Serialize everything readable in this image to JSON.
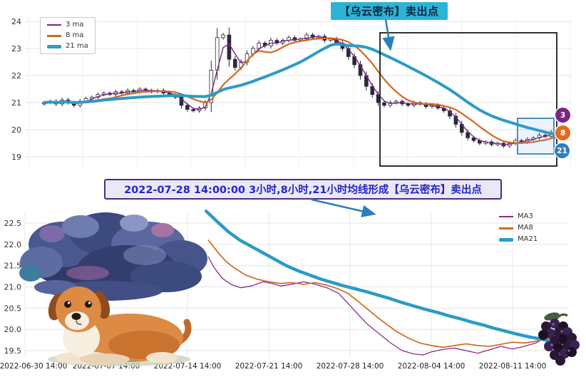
{
  "annotations": {
    "callout": {
      "text": "【乌云密布】卖出点",
      "bg": "#2db3d6",
      "text_color": "#0a2740"
    },
    "banner": {
      "text": "2022-07-28 14:00:00 3小时,8小时,21小时均线形成【乌云密布】卖出点",
      "bg": "#eae8f5",
      "border_color": "#4b2e83",
      "text_color": "#2326c8"
    },
    "badges": [
      {
        "label": "3",
        "color": "#7d2483"
      },
      {
        "label": "8",
        "color": "#e06d1f"
      },
      {
        "label": "21",
        "color": "#2f7fbf"
      }
    ],
    "region_box_color": "#1c1c1c",
    "highlight_box_color": "#4a90c2",
    "arrow_color": "#2a7fc0"
  },
  "chart_data": [
    {
      "type": "candlestick",
      "title": "",
      "xlabel": "",
      "ylabel": "",
      "ylim": [
        18.8,
        24.3
      ],
      "y_ticks": [
        24,
        23,
        22,
        21,
        20,
        19
      ],
      "grid": true,
      "legend_position": "upper-left",
      "ma_labels": [
        "3 ma",
        "8 ma",
        "21 ma"
      ],
      "ma_windows": [
        3,
        8,
        21
      ],
      "ma_colors": [
        "#7d2483",
        "#d2691e",
        "#2b9bc7"
      ],
      "closes": [
        21.0,
        21.05,
        20.95,
        21.1,
        21.0,
        20.9,
        21.05,
        21.15,
        21.2,
        21.3,
        21.35,
        21.3,
        21.4,
        21.35,
        21.45,
        21.4,
        21.5,
        21.45,
        21.4,
        21.45,
        21.35,
        21.3,
        21.2,
        20.9,
        20.75,
        20.7,
        20.8,
        21.0,
        22.2,
        23.4,
        23.5,
        22.6,
        22.3,
        22.5,
        22.8,
        23.0,
        23.2,
        23.1,
        23.3,
        23.2,
        23.3,
        23.4,
        23.3,
        23.35,
        23.5,
        23.4,
        23.45,
        23.3,
        23.35,
        23.2,
        23.0,
        22.7,
        22.4,
        22.0,
        21.6,
        21.3,
        21.0,
        20.9,
        21.0,
        21.05,
        20.95,
        20.9,
        21.0,
        20.95,
        20.85,
        20.9,
        20.8,
        20.7,
        20.5,
        20.2,
        19.9,
        19.7,
        19.6,
        19.5,
        19.55,
        19.45,
        19.5,
        19.4,
        19.5,
        19.6,
        19.55,
        19.65,
        19.7,
        19.8,
        19.75,
        19.9,
        19.85,
        19.95
      ]
    },
    {
      "type": "line",
      "title": "",
      "xlabel": "",
      "ylabel": "",
      "ylim": [
        19.3,
        22.9
      ],
      "grid": true,
      "legend_position": "upper-right",
      "y_ticks": [
        "22.5",
        "22.0",
        "21.5",
        "21.0",
        "20.5",
        "20.0",
        "19.5"
      ],
      "x_tick_days": [
        0,
        7,
        14,
        21,
        28,
        35,
        42
      ],
      "x_tick_labels": [
        "2022-06-30 14:00",
        "2022-07-07 14:00",
        "2022-07-14 14:00",
        "2022-07-21 14:00",
        "2022-07-28 14:00",
        "2022-08-04 14:00",
        "2022-08-11 14:00"
      ],
      "series": [
        {
          "name": "MA3",
          "color": "#8a2a8a",
          "width": 1.3,
          "points": [
            [
              15.8,
              21.7
            ],
            [
              16.3,
              21.45
            ],
            [
              17,
              21.2
            ],
            [
              17.8,
              21.05
            ],
            [
              18.6,
              20.98
            ],
            [
              19.5,
              21.02
            ],
            [
              20.5,
              21.12
            ],
            [
              21.3,
              21.08
            ],
            [
              22,
              21.02
            ],
            [
              23,
              21.06
            ],
            [
              24,
              21.12
            ],
            [
              25,
              21.06
            ],
            [
              26,
              20.98
            ],
            [
              27,
              20.85
            ],
            [
              27.8,
              20.62
            ],
            [
              28.6,
              20.38
            ],
            [
              29.5,
              20.12
            ],
            [
              30.5,
              19.9
            ],
            [
              31.5,
              19.68
            ],
            [
              32.5,
              19.5
            ],
            [
              33.5,
              19.42
            ],
            [
              34.3,
              19.4
            ],
            [
              35,
              19.47
            ],
            [
              36,
              19.53
            ],
            [
              37,
              19.56
            ],
            [
              38,
              19.5
            ],
            [
              39,
              19.44
            ],
            [
              40,
              19.52
            ],
            [
              41,
              19.6
            ],
            [
              42,
              19.54
            ],
            [
              43,
              19.6
            ],
            [
              44,
              19.68
            ],
            [
              45.3,
              19.88
            ]
          ]
        },
        {
          "name": "MA8",
          "color": "#d2691e",
          "width": 1.7,
          "points": [
            [
              15.8,
              22.1
            ],
            [
              16.5,
              21.85
            ],
            [
              17.3,
              21.6
            ],
            [
              18,
              21.45
            ],
            [
              19,
              21.28
            ],
            [
              20,
              21.18
            ],
            [
              21,
              21.12
            ],
            [
              22,
              21.08
            ],
            [
              23,
              21.1
            ],
            [
              24,
              21.06
            ],
            [
              25,
              21.1
            ],
            [
              26,
              21.04
            ],
            [
              27,
              20.95
            ],
            [
              27.8,
              20.85
            ],
            [
              28.6,
              20.68
            ],
            [
              29.4,
              20.5
            ],
            [
              30.2,
              20.32
            ],
            [
              31,
              20.15
            ],
            [
              32,
              19.95
            ],
            [
              33,
              19.8
            ],
            [
              34,
              19.68
            ],
            [
              35,
              19.62
            ],
            [
              36,
              19.58
            ],
            [
              37,
              19.62
            ],
            [
              38,
              19.66
            ],
            [
              39,
              19.62
            ],
            [
              40,
              19.6
            ],
            [
              41,
              19.65
            ],
            [
              42,
              19.7
            ],
            [
              43,
              19.68
            ],
            [
              44,
              19.72
            ],
            [
              45.3,
              19.8
            ]
          ]
        },
        {
          "name": "MA21",
          "color": "#2b9bc7",
          "width": 4.5,
          "points": [
            [
              15.6,
              22.78
            ],
            [
              16.5,
              22.55
            ],
            [
              17.5,
              22.3
            ],
            [
              18.5,
              22.1
            ],
            [
              19.5,
              21.95
            ],
            [
              20.5,
              21.8
            ],
            [
              21.5,
              21.65
            ],
            [
              22.5,
              21.5
            ],
            [
              23.5,
              21.38
            ],
            [
              24.5,
              21.28
            ],
            [
              25.5,
              21.18
            ],
            [
              26.5,
              21.1
            ],
            [
              27.5,
              21.02
            ],
            [
              28.5,
              20.95
            ],
            [
              29.5,
              20.88
            ],
            [
              30.5,
              20.8
            ],
            [
              31.5,
              20.72
            ],
            [
              32.5,
              20.63
            ],
            [
              33.5,
              20.55
            ],
            [
              34.5,
              20.47
            ],
            [
              35.5,
              20.4
            ],
            [
              36.5,
              20.32
            ],
            [
              37.5,
              20.25
            ],
            [
              38.5,
              20.17
            ],
            [
              39.5,
              20.1
            ],
            [
              40.5,
              20.02
            ],
            [
              41.5,
              19.95
            ],
            [
              42.5,
              19.88
            ],
            [
              43.5,
              19.82
            ],
            [
              44.5,
              19.77
            ],
            [
              45.3,
              19.72
            ]
          ]
        }
      ]
    }
  ]
}
